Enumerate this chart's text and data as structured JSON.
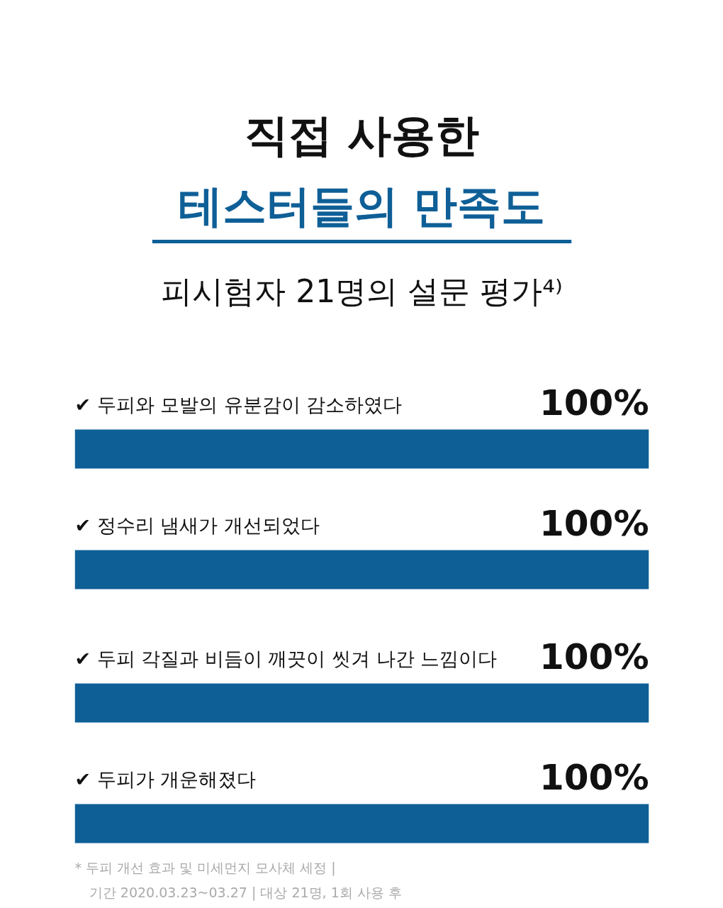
{
  "chart_data": {
    "type": "bar",
    "orientation": "horizontal",
    "title": "직접 사용한\n테스터들의 만족도",
    "subtitle": "피시험자 21명의 설문 평가⁴⁾",
    "categories": [
      "✔ 두피와 모발의 유분감이 감소하였다",
      "✔ 정수리 냄새가 개선되었다",
      "✔ 두피 각질과 비듬이 깨끗이 씻겨 나간 느낌이다",
      "✔ 두피가 개운해졌다"
    ],
    "values": [
      100,
      100,
      100,
      100
    ],
    "color": "#0f5f97",
    "value_labels": [
      "100%",
      "100%",
      "100%",
      "100%"
    ],
    "annotations": [
      "* 두피 개선 효과 및 미세먼지 모사체 세정 |",
      "기간 2020.03.23~03.27 | 대상 21명, 1회 사용 후"
    ]
  }
}
